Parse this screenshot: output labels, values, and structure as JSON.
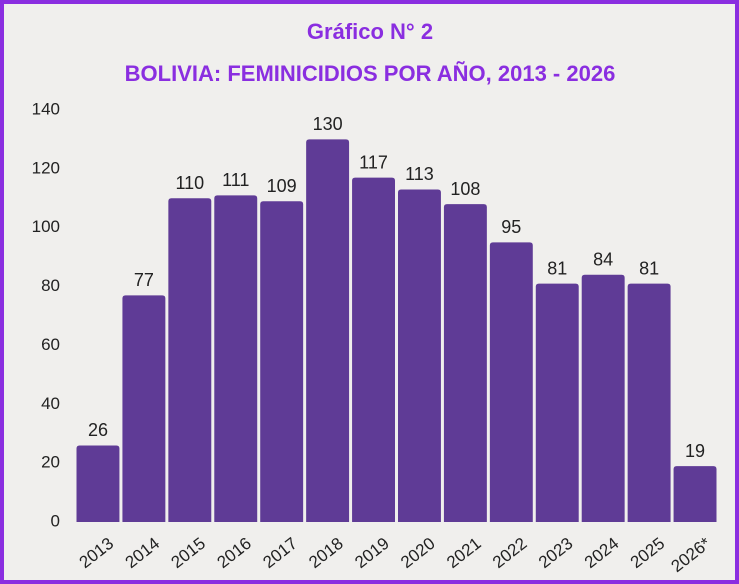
{
  "chart_data": {
    "type": "bar",
    "title": "Gráfico N° 2",
    "subtitle": "BOLIVIA: FEMINICIDIOS POR AÑO, 2013 - 2026",
    "categories": [
      "2013",
      "2014",
      "2015",
      "2016",
      "2017",
      "2018",
      "2019",
      "2020",
      "2021",
      "2022",
      "2023",
      "2024",
      "2025",
      "2026*"
    ],
    "values": [
      26,
      77,
      110,
      111,
      109,
      130,
      117,
      113,
      108,
      95,
      81,
      84,
      81,
      19
    ],
    "color": "#5f3b96",
    "ylim": [
      0,
      140
    ],
    "yticks": [
      0,
      20,
      40,
      60,
      80,
      100,
      120,
      140
    ],
    "grid": false
  }
}
